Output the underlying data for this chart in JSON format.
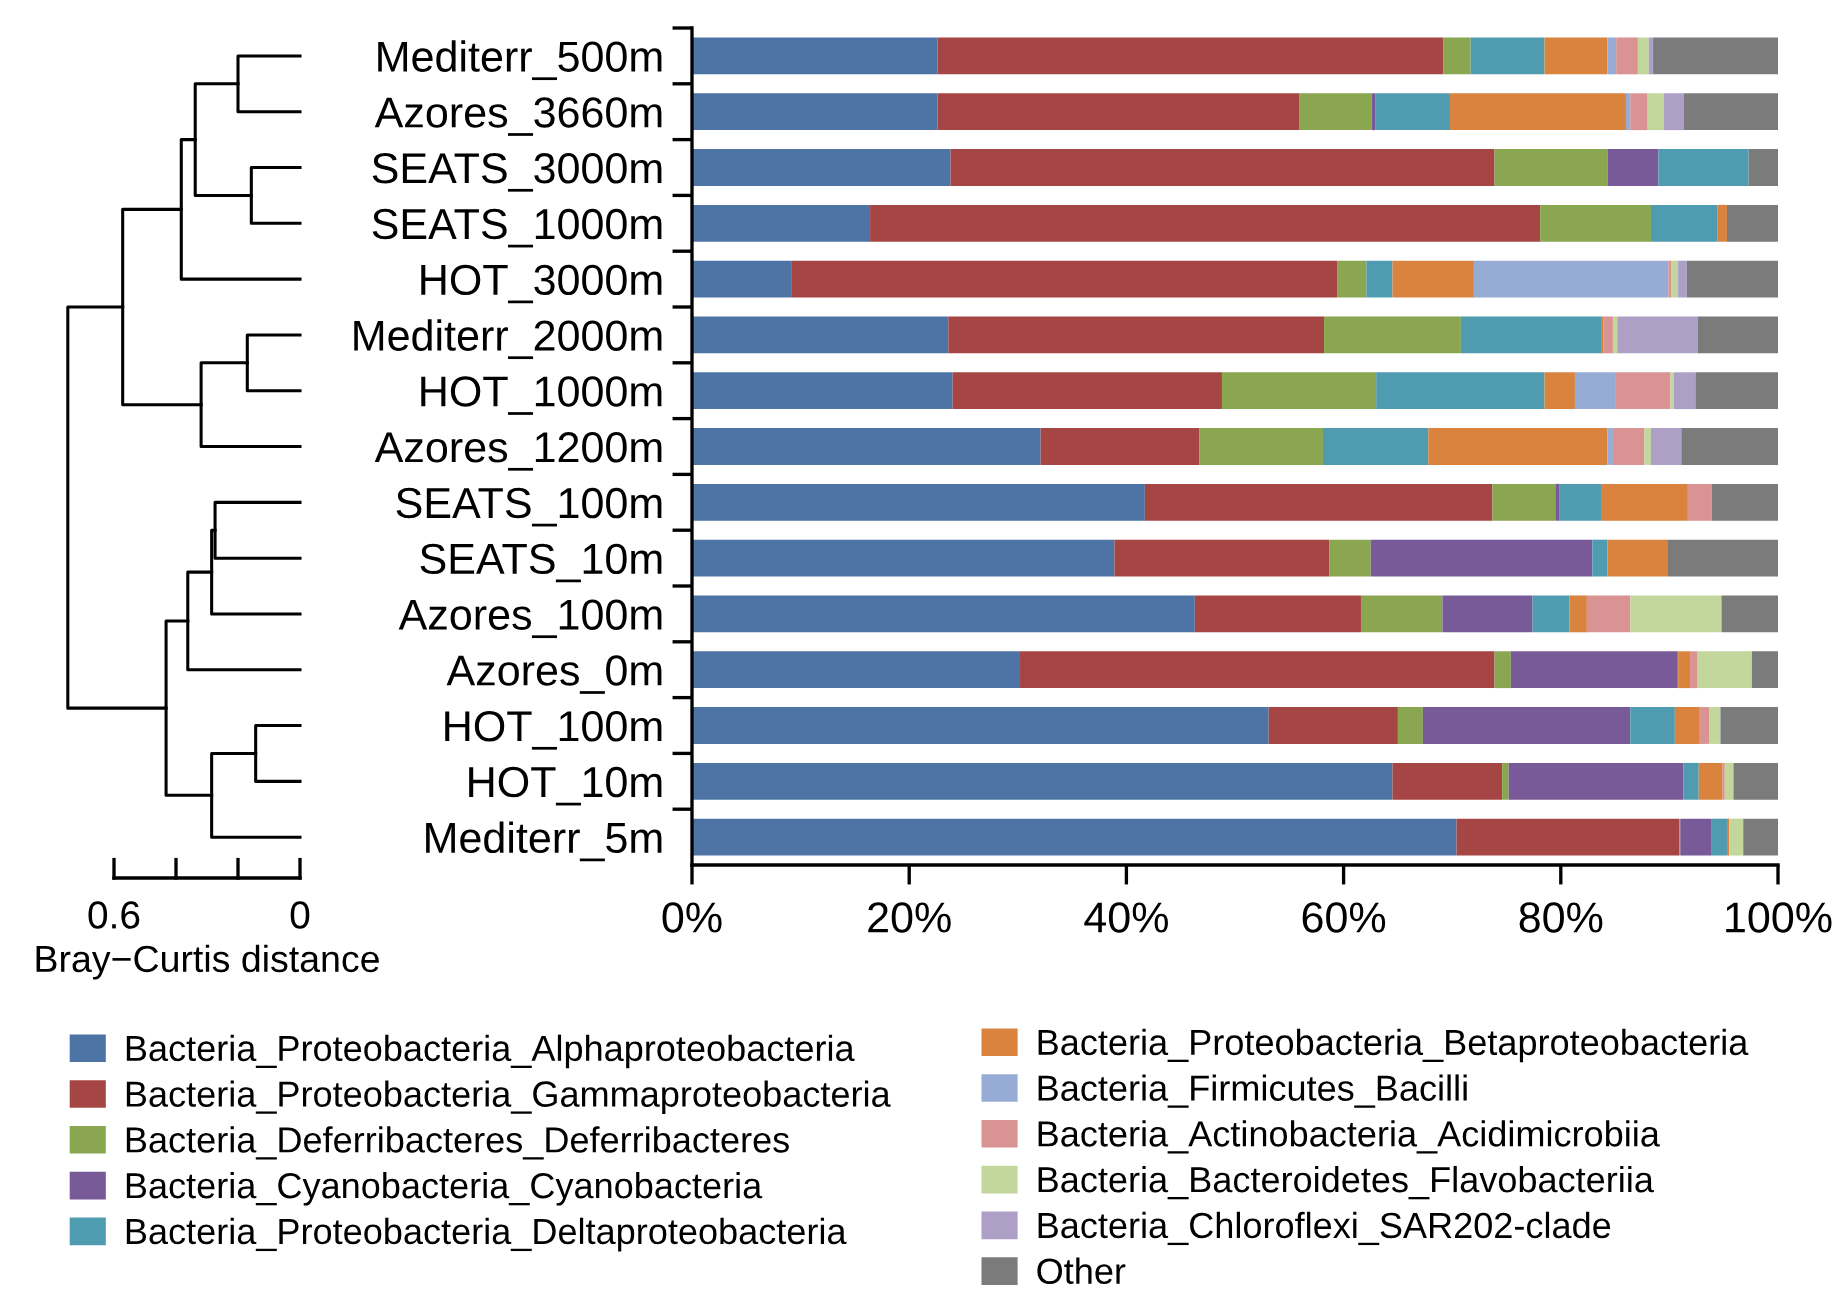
{
  "chart_data": [
    {
      "type": "bar",
      "orientation": "horizontal",
      "stacked": true,
      "legend": "bottom",
      "grid": false,
      "categories": [
        "Mediterr_500m",
        "Azores_3660m",
        "SEATS_3000m",
        "SEATS_1000m",
        "HOT_3000m",
        "Mediterr_2000m",
        "HOT_1000m",
        "Azores_1200m",
        "SEATS_100m",
        "SEATS_10m",
        "Azores_100m",
        "Azores_0m",
        "HOT_100m",
        "HOT_10m",
        "Mediterr_5m"
      ],
      "xlim": [
        0,
        100
      ],
      "xticks": [
        {
          "value": 0,
          "label": "0%"
        },
        {
          "value": 20,
          "label": "20%"
        },
        {
          "value": 40,
          "label": "40%"
        },
        {
          "value": 60,
          "label": "60%"
        },
        {
          "value": 80,
          "label": "80%"
        },
        {
          "value": 100,
          "label": "100%"
        }
      ],
      "series": [
        {
          "name": "Bacteria_Proteobacteria_Alphaproteobacteria",
          "color": "#4e74a6",
          "values": [
            22.6,
            22.6,
            23.8,
            16.4,
            9.2,
            23.6,
            24.0,
            32.1,
            41.7,
            38.9,
            46.3,
            30.2,
            53.1,
            64.5,
            70.4
          ]
        },
        {
          "name": "Bacteria_Proteobacteria_Gammaproteobacteria",
          "color": "#a64644",
          "values": [
            46.6,
            33.3,
            50.1,
            61.7,
            50.2,
            34.6,
            24.8,
            14.6,
            32.0,
            19.8,
            15.3,
            43.7,
            11.9,
            10.1,
            20.5
          ]
        },
        {
          "name": "Bacteria_Deferribacteres_Deferribacteres",
          "color": "#8aa650",
          "values": [
            2.5,
            6.7,
            10.4,
            10.2,
            2.7,
            12.6,
            14.2,
            11.4,
            5.8,
            3.8,
            7.5,
            1.5,
            2.3,
            0.6,
            0.1
          ]
        },
        {
          "name": "Bacteria_Cyanobacteria_Cyanobacteria",
          "color": "#775a97",
          "values": [
            0,
            0.3,
            4.7,
            0,
            0,
            0,
            0,
            0,
            0.4,
            20.4,
            8.3,
            15.3,
            19.1,
            16.1,
            2.9
          ]
        },
        {
          "name": "Bacteria_Proteobacteria_Deltaproteobacteria",
          "color": "#4f9bb0",
          "values": [
            6.8,
            6.9,
            8.3,
            6.1,
            2.4,
            12.9,
            15.5,
            9.7,
            3.8,
            1.4,
            3.4,
            0.1,
            4.1,
            1.4,
            1.4
          ]
        },
        {
          "name": "Bacteria_Proteobacteria_Betaproteobacteria",
          "color": "#d9833f",
          "values": [
            5.8,
            16.2,
            0,
            0.9,
            7.5,
            0.2,
            2.8,
            16.5,
            8.0,
            5.5,
            1.6,
            1.1,
            2.3,
            2.2,
            0.2
          ]
        },
        {
          "name": "Bacteria_Firmicutes_Bacilli",
          "color": "#97acd5",
          "values": [
            0.8,
            0.4,
            0,
            0,
            17.9,
            0,
            3.7,
            0.5,
            0,
            0,
            0,
            0,
            0,
            0,
            0
          ]
        },
        {
          "name": "Bacteria_Actinobacteria_Acidimicrobiia",
          "color": "#d99393",
          "values": [
            2.0,
            1.6,
            0,
            0,
            0.3,
            0.9,
            5.1,
            2.9,
            2.2,
            0,
            4.0,
            0.7,
            0.9,
            0.2,
            0
          ]
        },
        {
          "name": "Bacteria_Bacteroidetes_Flavobacteriia",
          "color": "#c3d69c",
          "values": [
            1.0,
            1.5,
            0,
            0,
            0.6,
            0.4,
            0.3,
            0.6,
            0,
            0,
            8.4,
            5.0,
            1.0,
            0.8,
            1.3
          ]
        },
        {
          "name": "Bacteria_Chloroflexi_SAR202-clade",
          "color": "#ad9fc6",
          "values": [
            0.4,
            1.8,
            0,
            0,
            0.8,
            7.4,
            2.0,
            2.8,
            0,
            0,
            0,
            0,
            0,
            0,
            0
          ]
        },
        {
          "name": "Other",
          "color": "#7a7b7a",
          "values": [
            11.5,
            8.7,
            2.7,
            4.7,
            8.4,
            7.4,
            7.6,
            8.9,
            6.1,
            10.2,
            5.2,
            2.4,
            5.3,
            4.1,
            3.2
          ]
        }
      ]
    },
    {
      "type": "other",
      "xlabel": "Bray−Curtis distance",
      "annotations": [
        "0.6",
        "0"
      ]
    }
  ]
}
